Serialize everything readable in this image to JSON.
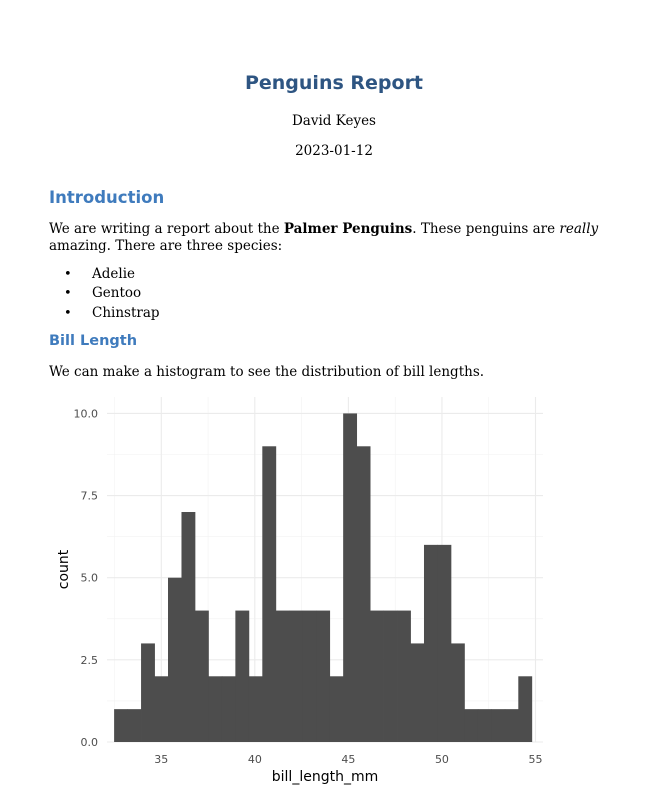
{
  "report": {
    "title": "Penguins Report",
    "author": "David Keyes",
    "date": "2023-01-12"
  },
  "introduction": {
    "heading": "Introduction",
    "para_part1": "We are writing a report about the ",
    "para_bold": "Palmer Penguins",
    "para_part2": ". These penguins are ",
    "para_italic": "really",
    "para_part3": " amazing. There are three species:",
    "species": [
      "Adelie",
      "Gentoo",
      "Chinstrap"
    ],
    "bullet": "•"
  },
  "bill_length": {
    "heading": "Bill Length",
    "para": "We can make a histogram to see the distribution of bill lengths."
  },
  "chart_data": {
    "type": "bar",
    "xlabel": "bill_length_mm",
    "ylabel": "count",
    "xlim": [
      32.1,
      55.4
    ],
    "ylim": [
      0,
      10.5
    ],
    "x_ticks": [
      35,
      40,
      45,
      50,
      55
    ],
    "x_tick_labels": [
      "35",
      "40",
      "45",
      "50",
      "55"
    ],
    "y_ticks": [
      0,
      2.5,
      5,
      7.5,
      10
    ],
    "y_tick_labels": [
      "0.0",
      "2.5",
      "5.0",
      "7.5",
      "10.0"
    ],
    "grid": true,
    "bar_color": "#4d4d4d",
    "bin_width": 0.72,
    "bin_starts": [
      32.48,
      33.2,
      33.92,
      34.64,
      35.36,
      36.08,
      36.8,
      37.52,
      38.24,
      38.96,
      39.68,
      40.4,
      41.12,
      41.84,
      42.56,
      43.28,
      44.0,
      44.72,
      45.44,
      46.16,
      46.88,
      47.6,
      48.32,
      49.04,
      49.76,
      50.48,
      51.2,
      51.92,
      52.64,
      53.36,
      54.08
    ],
    "counts": [
      1,
      1,
      3,
      2,
      5,
      7,
      4,
      2,
      2,
      4,
      2,
      9,
      4,
      4,
      4,
      4,
      2,
      10,
      9,
      4,
      4,
      4,
      3,
      6,
      6,
      3,
      1,
      1,
      1,
      1,
      2
    ]
  }
}
